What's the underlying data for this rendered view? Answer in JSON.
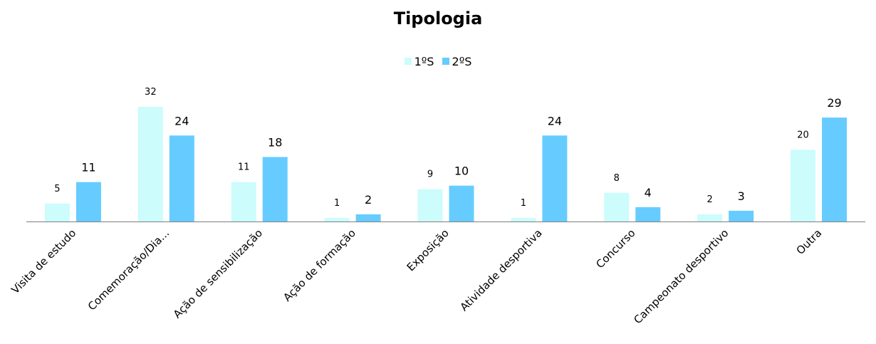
{
  "chart_data": {
    "type": "bar",
    "title": "Tipologia",
    "xlabel": "",
    "ylabel": "",
    "ylim": [
      0,
      32
    ],
    "grid": false,
    "legend_position": "top-center",
    "categories": [
      "Visita de estudo",
      "Comemoração/Dia...",
      "Ação de sensibilização",
      "Ação de formação",
      "Exposição",
      "Atividade desportiva",
      "Concurso",
      "Campeonato desportivo",
      "Outra"
    ],
    "series": [
      {
        "name": "1ºS",
        "color": "#ccfcfc",
        "values": [
          5,
          32,
          11,
          1,
          9,
          1,
          8,
          2,
          20
        ]
      },
      {
        "name": "2ºS",
        "color": "#66ccff",
        "values": [
          11,
          24,
          18,
          2,
          10,
          24,
          4,
          3,
          29
        ]
      }
    ]
  }
}
